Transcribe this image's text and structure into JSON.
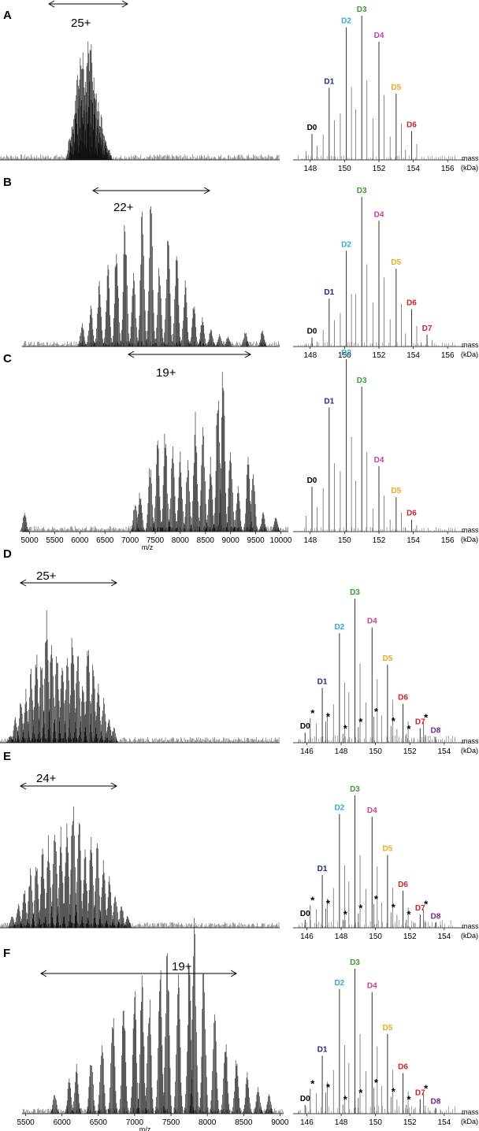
{
  "panels": [
    "A",
    "B",
    "C",
    "D",
    "E",
    "F"
  ],
  "chart_data": [
    {
      "panel": "A",
      "type": "line",
      "ms": {
        "charge_label": "25+",
        "peaks": [
          [
            6150,
            0.18
          ],
          [
            6200,
            0.28
          ],
          [
            6250,
            0.45
          ],
          [
            6300,
            0.62
          ],
          [
            6350,
            0.76
          ],
          [
            6400,
            0.88
          ],
          [
            6450,
            0.55
          ],
          [
            6500,
            0.93
          ],
          [
            6550,
            1.0
          ],
          [
            6600,
            0.62
          ],
          [
            6650,
            0.52
          ],
          [
            6700,
            0.4
          ],
          [
            6750,
            0.33
          ],
          [
            6800,
            0.22
          ],
          [
            6850,
            0.14
          ],
          [
            6900,
            0.08
          ]
        ],
        "x_ticks": [],
        "xlabel": ""
      },
      "deconv": {
        "xlim": [
          147,
          157
        ],
        "x_ticks": [
          148,
          150,
          152,
          154,
          156
        ],
        "xlabel": "mass",
        "unit": "(kDa)",
        "peaks": [
          {
            "label": "D0",
            "mass": 148.1,
            "height": 0.18,
            "color": "#000000"
          },
          {
            "label": "D1",
            "mass": 149.1,
            "height": 0.5,
            "color": "#1f2b80"
          },
          {
            "label": "D2",
            "mass": 150.1,
            "height": 0.92,
            "color": "#35a9d6"
          },
          {
            "label": "D3",
            "mass": 151.0,
            "height": 1.0,
            "color": "#3c9a35"
          },
          {
            "label": "D4",
            "mass": 152.0,
            "height": 0.82,
            "color": "#c8438f"
          },
          {
            "label": "D5",
            "mass": 153.0,
            "height": 0.46,
            "color": "#f0a81e"
          },
          {
            "label": "D6",
            "mass": 153.9,
            "height": 0.2,
            "color": "#d01f25"
          }
        ],
        "stars": []
      }
    },
    {
      "panel": "B",
      "type": "line",
      "ms": {
        "charge_label": "22+",
        "peaks": [
          [
            6300,
            0.15
          ],
          [
            6400,
            0.28
          ],
          [
            6500,
            0.45
          ],
          [
            6600,
            0.55
          ],
          [
            6700,
            0.72
          ],
          [
            6800,
            0.85
          ],
          [
            6900,
            0.5
          ],
          [
            7000,
            0.92
          ],
          [
            7100,
            1.0
          ],
          [
            7200,
            0.55
          ],
          [
            7300,
            0.75
          ],
          [
            7400,
            0.65
          ],
          [
            7500,
            0.45
          ],
          [
            7600,
            0.3
          ],
          [
            7700,
            0.2
          ],
          [
            7800,
            0.12
          ],
          [
            7900,
            0.08
          ],
          [
            8000,
            0.07
          ],
          [
            8200,
            0.1
          ],
          [
            8400,
            0.12
          ]
        ],
        "x_ticks": [],
        "xlabel": ""
      },
      "deconv": {
        "xlim": [
          147,
          157
        ],
        "x_ticks": [
          148,
          150,
          152,
          154,
          156
        ],
        "xlabel": "mass",
        "unit": "(kDa)",
        "peaks": [
          {
            "label": "D0",
            "mass": 148.1,
            "height": 0.06,
            "color": "#000000"
          },
          {
            "label": "D1",
            "mass": 149.1,
            "height": 0.32,
            "color": "#1f2b80"
          },
          {
            "label": "D2",
            "mass": 150.1,
            "height": 0.64,
            "color": "#35a9d6"
          },
          {
            "label": "D3",
            "mass": 151.0,
            "height": 1.0,
            "color": "#3c9a35"
          },
          {
            "label": "D4",
            "mass": 152.0,
            "height": 0.84,
            "color": "#c8438f"
          },
          {
            "label": "D5",
            "mass": 153.0,
            "height": 0.52,
            "color": "#f0a81e"
          },
          {
            "label": "D6",
            "mass": 153.9,
            "height": 0.25,
            "color": "#d01f25"
          },
          {
            "label": "D7",
            "mass": 154.8,
            "height": 0.08,
            "color": "#d01f25"
          }
        ],
        "stars": []
      }
    },
    {
      "panel": "C",
      "type": "line",
      "ms": {
        "charge_label": "19+",
        "peaks": [
          [
            4900,
            0.12
          ],
          [
            7100,
            0.18
          ],
          [
            7200,
            0.25
          ],
          [
            7400,
            0.4
          ],
          [
            7550,
            0.55
          ],
          [
            7700,
            0.62
          ],
          [
            7850,
            0.52
          ],
          [
            8000,
            0.48
          ],
          [
            8150,
            0.42
          ],
          [
            8300,
            0.7
          ],
          [
            8450,
            0.62
          ],
          [
            8600,
            0.45
          ],
          [
            8750,
            0.92
          ],
          [
            8850,
            1.0
          ],
          [
            9000,
            0.55
          ],
          [
            9150,
            0.3
          ],
          [
            9350,
            0.48
          ],
          [
            9450,
            0.35
          ],
          [
            9650,
            0.12
          ],
          [
            9900,
            0.1
          ]
        ],
        "x_ticks": [
          5000,
          5500,
          6000,
          6500,
          7000,
          7500,
          8000,
          8500,
          9000,
          9500,
          10000
        ],
        "xlabel": "m/z"
      },
      "deconv": {
        "xlim": [
          147,
          157
        ],
        "x_ticks": [
          148,
          150,
          152,
          154,
          156
        ],
        "xlabel": "mass",
        "unit": "(kDa)",
        "peaks": [
          {
            "label": "D0",
            "mass": 148.1,
            "height": 0.26,
            "color": "#000000"
          },
          {
            "label": "D1",
            "mass": 149.1,
            "height": 0.72,
            "color": "#1f2b80"
          },
          {
            "label": "D2",
            "mass": 150.1,
            "height": 1.0,
            "color": "#35a9d6"
          },
          {
            "label": "D3",
            "mass": 151.0,
            "height": 0.84,
            "color": "#3c9a35"
          },
          {
            "label": "D4",
            "mass": 152.0,
            "height": 0.38,
            "color": "#c8438f"
          },
          {
            "label": "D5",
            "mass": 153.0,
            "height": 0.2,
            "color": "#f0a81e"
          },
          {
            "label": "D6",
            "mass": 153.9,
            "height": 0.07,
            "color": "#d01f25"
          }
        ],
        "stars": []
      }
    },
    {
      "panel": "D",
      "type": "line",
      "ms": {
        "charge_label": "25+",
        "peaks": [
          [
            5000,
            0.05
          ],
          [
            5050,
            0.18
          ],
          [
            5100,
            0.28
          ],
          [
            5150,
            0.35
          ],
          [
            5200,
            0.48
          ],
          [
            5250,
            0.62
          ],
          [
            5300,
            0.55
          ],
          [
            5350,
            0.9
          ],
          [
            5400,
            0.75
          ],
          [
            5450,
            0.62
          ],
          [
            5500,
            0.55
          ],
          [
            5550,
            0.6
          ],
          [
            5600,
            0.8
          ],
          [
            5650,
            0.62
          ],
          [
            5700,
            0.4
          ],
          [
            5750,
            0.72
          ],
          [
            5800,
            0.55
          ],
          [
            5850,
            0.38
          ],
          [
            5900,
            0.3
          ],
          [
            5950,
            0.18
          ],
          [
            6000,
            0.1
          ]
        ],
        "x_ticks": [],
        "xlabel": ""
      },
      "deconv": {
        "xlim": [
          145.2,
          155.2
        ],
        "x_ticks": [
          146,
          148,
          150,
          152,
          154
        ],
        "xlabel": "mass",
        "unit": "(kDa)",
        "peaks": [
          {
            "label": "D0",
            "mass": 145.9,
            "height": 0.07,
            "color": "#000000"
          },
          {
            "label": "D1",
            "mass": 146.9,
            "height": 0.38,
            "color": "#1f2b80"
          },
          {
            "label": "D2",
            "mass": 147.9,
            "height": 0.76,
            "color": "#35a9d6"
          },
          {
            "label": "D3",
            "mass": 148.8,
            "height": 1.0,
            "color": "#3c9a35"
          },
          {
            "label": "D4",
            "mass": 149.8,
            "height": 0.8,
            "color": "#c8438f"
          },
          {
            "label": "D5",
            "mass": 150.7,
            "height": 0.54,
            "color": "#f0a81e"
          },
          {
            "label": "D6",
            "mass": 151.6,
            "height": 0.27,
            "color": "#d01f25"
          },
          {
            "label": "D7",
            "mass": 152.6,
            "height": 0.1,
            "color": "#d01f25"
          },
          {
            "label": "D8",
            "mass": 153.5,
            "height": 0.04,
            "color": "#6a2c91"
          }
        ],
        "stars": [
          146.2,
          147.1,
          148.1,
          149.0,
          149.9,
          150.9,
          151.8,
          152.8
        ]
      }
    },
    {
      "panel": "E",
      "type": "line",
      "ms": {
        "charge_label": "24+",
        "peaks": [
          [
            5500,
            0.1
          ],
          [
            5550,
            0.2
          ],
          [
            5600,
            0.32
          ],
          [
            5650,
            0.45
          ],
          [
            5700,
            0.55
          ],
          [
            5750,
            0.62
          ],
          [
            5800,
            0.7
          ],
          [
            5850,
            0.88
          ],
          [
            5900,
            0.78
          ],
          [
            5950,
            0.82
          ],
          [
            6000,
            1.0
          ],
          [
            6050,
            0.85
          ],
          [
            6100,
            0.6
          ],
          [
            6150,
            0.75
          ],
          [
            6200,
            0.68
          ],
          [
            6250,
            0.55
          ],
          [
            6300,
            0.4
          ],
          [
            6350,
            0.28
          ],
          [
            6400,
            0.18
          ],
          [
            6450,
            0.1
          ]
        ],
        "x_ticks": [],
        "xlabel": ""
      },
      "deconv": {
        "xlim": [
          145.2,
          155.2
        ],
        "x_ticks": [
          146,
          148,
          150,
          152,
          154
        ],
        "xlabel": "mass",
        "unit": "(kDa)",
        "peaks": [
          {
            "label": "D0",
            "mass": 145.9,
            "height": 0.06,
            "color": "#000000"
          },
          {
            "label": "D1",
            "mass": 146.9,
            "height": 0.4,
            "color": "#1f2b80"
          },
          {
            "label": "D2",
            "mass": 147.9,
            "height": 0.86,
            "color": "#35a9d6"
          },
          {
            "label": "D3",
            "mass": 148.8,
            "height": 1.0,
            "color": "#3c9a35"
          },
          {
            "label": "D4",
            "mass": 149.8,
            "height": 0.84,
            "color": "#c8438f"
          },
          {
            "label": "D5",
            "mass": 150.7,
            "height": 0.55,
            "color": "#f0a81e"
          },
          {
            "label": "D6",
            "mass": 151.6,
            "height": 0.28,
            "color": "#d01f25"
          },
          {
            "label": "D7",
            "mass": 152.6,
            "height": 0.1,
            "color": "#d01f25"
          },
          {
            "label": "D8",
            "mass": 153.5,
            "height": 0.04,
            "color": "#6a2c91"
          }
        ],
        "stars": [
          146.2,
          147.1,
          148.1,
          149.0,
          149.9,
          150.9,
          151.8,
          152.8
        ]
      }
    },
    {
      "panel": "F",
      "type": "line",
      "ms": {
        "charge_label": "19+",
        "peaks": [
          [
            5900,
            0.1
          ],
          [
            6100,
            0.18
          ],
          [
            6200,
            0.25
          ],
          [
            6400,
            0.32
          ],
          [
            6550,
            0.4
          ],
          [
            6700,
            0.55
          ],
          [
            6850,
            0.62
          ],
          [
            7000,
            0.68
          ],
          [
            7100,
            0.72
          ],
          [
            7200,
            0.62
          ],
          [
            7350,
            0.8
          ],
          [
            7450,
            0.88
          ],
          [
            7600,
            0.75
          ],
          [
            7750,
            0.82
          ],
          [
            7820,
            1.0
          ],
          [
            7950,
            0.78
          ],
          [
            8100,
            0.55
          ],
          [
            8250,
            0.4
          ],
          [
            8400,
            0.3
          ],
          [
            8550,
            0.22
          ],
          [
            8700,
            0.15
          ],
          [
            8850,
            0.1
          ]
        ],
        "x_ticks": [
          5500,
          6000,
          6500,
          7000,
          7500,
          8000,
          8500,
          9000
        ],
        "xlabel": "m/z"
      },
      "deconv": {
        "xlim": [
          145.2,
          155.2
        ],
        "x_ticks": [
          146,
          148,
          150,
          152,
          154
        ],
        "xlabel": "mass",
        "unit": "(kDa)",
        "peaks": [
          {
            "label": "D0",
            "mass": 145.9,
            "height": 0.06,
            "color": "#000000"
          },
          {
            "label": "D1",
            "mass": 146.9,
            "height": 0.4,
            "color": "#1f2b80"
          },
          {
            "label": "D2",
            "mass": 147.9,
            "height": 0.86,
            "color": "#35a9d6"
          },
          {
            "label": "D3",
            "mass": 148.8,
            "height": 1.0,
            "color": "#3c9a35"
          },
          {
            "label": "D4",
            "mass": 149.8,
            "height": 0.84,
            "color": "#c8438f"
          },
          {
            "label": "D5",
            "mass": 150.7,
            "height": 0.55,
            "color": "#f0a81e"
          },
          {
            "label": "D6",
            "mass": 151.6,
            "height": 0.28,
            "color": "#d01f25"
          },
          {
            "label": "D7",
            "mass": 152.6,
            "height": 0.1,
            "color": "#d01f25"
          },
          {
            "label": "D8",
            "mass": 153.5,
            "height": 0.04,
            "color": "#6a2c91"
          }
        ],
        "stars": [
          146.2,
          147.1,
          148.1,
          149.0,
          149.9,
          150.9,
          151.8,
          152.8
        ]
      }
    }
  ]
}
